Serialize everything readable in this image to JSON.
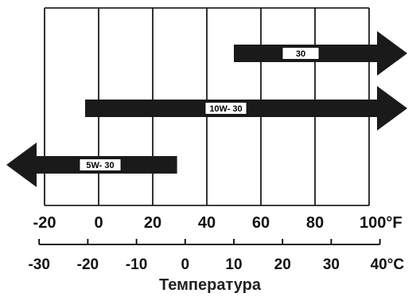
{
  "chart_data": {
    "type": "range-bar",
    "title": "",
    "xlabel": "Температура",
    "fahrenheit_axis": {
      "unit": "°F",
      "ticks": [
        -20,
        0,
        20,
        40,
        60,
        80,
        100
      ],
      "tick_labels": [
        "-20",
        "0",
        "20",
        "40",
        "60",
        "80",
        "100°F"
      ],
      "range": [
        -20,
        100
      ]
    },
    "celsius_axis": {
      "unit": "°C",
      "ticks": [
        -30,
        -20,
        -10,
        0,
        10,
        20,
        30,
        40
      ],
      "tick_labels": [
        "-30",
        "-20",
        "-10",
        "0",
        "10",
        "20",
        "30",
        "40°C"
      ],
      "range": [
        -30,
        40
      ]
    },
    "series": [
      {
        "name": "30",
        "from_f": 50,
        "to_f": 100,
        "open_low": false,
        "open_high": true
      },
      {
        "name": "10W- 30",
        "from_f": -5,
        "to_f": 100,
        "open_low": false,
        "open_high": true
      },
      {
        "name": "5W- 30",
        "from_f": -20,
        "to_f": 29,
        "open_low": true,
        "open_high": false
      }
    ],
    "grid": true,
    "colors": {
      "bar": "#1a1a1a",
      "grid": "#000000",
      "label_bg": "#ffffff"
    }
  }
}
